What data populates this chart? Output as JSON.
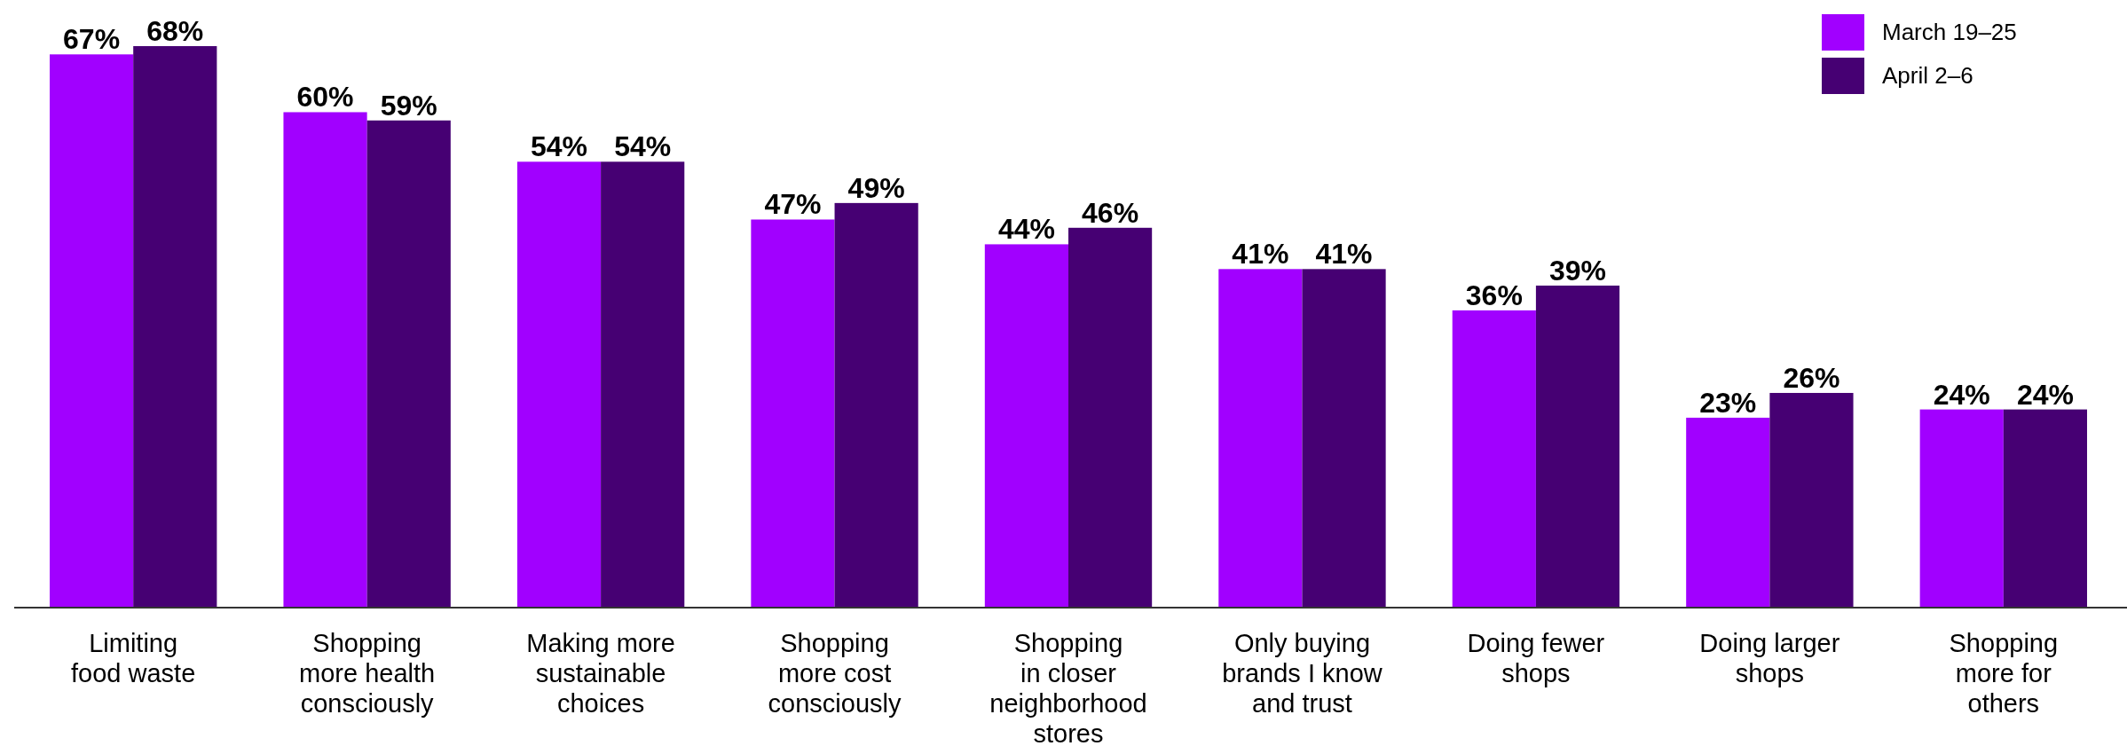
{
  "chart_data": {
    "type": "bar",
    "categories": [
      "Limiting\nfood waste",
      "Shopping\nmore health\nconsciously",
      "Making more\nsustainable\nchoices",
      "Shopping\nmore cost\nconsciously",
      "Shopping\nin closer\nneighborhood\nstores",
      "Only buying\nbrands I know\nand trust",
      "Doing fewer\nshops",
      "Doing larger\nshops",
      "Shopping\nmore for\nothers"
    ],
    "series": [
      {
        "name": "March 19–25",
        "color": "#a100ff",
        "values": [
          67,
          60,
          54,
          47,
          44,
          41,
          36,
          23,
          24
        ],
        "value_labels": [
          "67%",
          "60%",
          "54%",
          "47%",
          "44%",
          "41%",
          "36%",
          "23%",
          "24%"
        ]
      },
      {
        "name": "April 2–6",
        "color": "#460073",
        "values": [
          68,
          59,
          54,
          49,
          46,
          41,
          39,
          26,
          24
        ],
        "value_labels": [
          "68%",
          "59%",
          "54%",
          "49%",
          "46%",
          "41%",
          "39%",
          "26%",
          "24%"
        ]
      }
    ],
    "tick_labels": "x",
    "legend": "top right"
  }
}
